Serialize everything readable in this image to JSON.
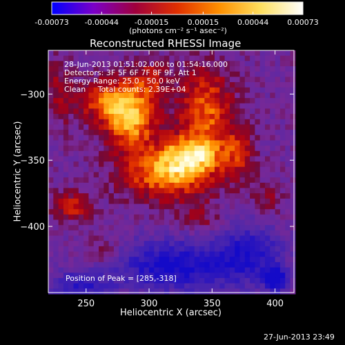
{
  "colorbar": {
    "tick_labels": [
      "-0.00073",
      "-0.00044",
      "-0.00015",
      "0.00015",
      "0.00044",
      "0.00073"
    ],
    "tick_values": [
      -0.00073,
      -0.00044,
      -0.00015,
      0.00015,
      0.00044,
      0.00073
    ],
    "range": [
      -0.00073,
      0.00073
    ],
    "units_label": "(photons cm⁻² s⁻¹ asec⁻²)",
    "colors": [
      "#0000ff",
      "#7b00c8",
      "#a0003c",
      "#e03000",
      "#ff9000",
      "#ffe060",
      "#ffffff"
    ]
  },
  "chart_data": {
    "type": "heatmap",
    "title": "Reconstructed RHESSI Image",
    "xlabel": "Heliocentric X (arcsec)",
    "ylabel": "Heliocentric Y (arcsec)",
    "xlim": [
      220,
      415
    ],
    "ylim": [
      -450,
      -267
    ],
    "x_ticks": [
      250,
      300,
      350,
      400
    ],
    "y_ticks": [
      -300,
      -350,
      -400
    ],
    "grid": false,
    "annotations": [
      "28-Jun-2013 01:51:02.000 to 01:54:16.000",
      "Detectors: 3F 5F 6F 7F 8F 9F, Att 1",
      "Energy Range: 25.0 - 50.0 keV",
      "Clean     Total counts: 2.39E+04"
    ],
    "peak_label": "Position of Peak = [285,-318]",
    "peak_position": [
      285,
      -318
    ],
    "blobs": [
      {
        "x": 285,
        "y": -318,
        "amp": 1.0,
        "sx": 14,
        "sy": 16
      },
      {
        "x": 262,
        "y": -305,
        "amp": 0.55,
        "sx": 14,
        "sy": 12
      },
      {
        "x": 315,
        "y": -360,
        "amp": 0.85,
        "sx": 26,
        "sy": 14
      },
      {
        "x": 345,
        "y": -312,
        "amp": 0.7,
        "sx": 16,
        "sy": 22
      },
      {
        "x": 335,
        "y": -345,
        "amp": 0.7,
        "sx": 18,
        "sy": 10
      },
      {
        "x": 300,
        "y": -290,
        "amp": 0.45,
        "sx": 12,
        "sy": 10
      },
      {
        "x": 372,
        "y": -345,
        "amp": 0.45,
        "sx": 8,
        "sy": 14
      },
      {
        "x": 240,
        "y": -385,
        "amp": 0.5,
        "sx": 12,
        "sy": 8
      },
      {
        "x": 265,
        "y": -420,
        "amp": 0.3,
        "sx": 10,
        "sy": 8
      },
      {
        "x": 340,
        "y": -395,
        "amp": 0.28,
        "sx": 12,
        "sy": 8
      },
      {
        "x": 395,
        "y": -380,
        "amp": 0.28,
        "sx": 10,
        "sy": 10
      },
      {
        "x": 228,
        "y": -300,
        "amp": 0.35,
        "sx": 8,
        "sy": 18
      },
      {
        "x": 320,
        "y": -430,
        "amp": -0.75,
        "sx": 35,
        "sy": 14
      },
      {
        "x": 400,
        "y": -440,
        "amp": -1.0,
        "sx": 6,
        "sy": 6
      },
      {
        "x": 380,
        "y": -420,
        "amp": -0.6,
        "sx": 18,
        "sy": 16
      },
      {
        "x": 245,
        "y": -445,
        "amp": -0.55,
        "sx": 16,
        "sy": 8
      }
    ]
  },
  "footer": {
    "timestamp": "27-Jun-2013 23:49"
  }
}
